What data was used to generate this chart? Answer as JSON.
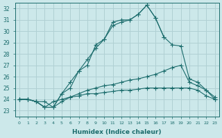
{
  "xlabel": "Humidex (Indice chaleur)",
  "background_color": "#cce8ea",
  "grid_color": "#b0d0d3",
  "line_color": "#1a6b6b",
  "xlim": [
    -0.5,
    23.5
  ],
  "ylim": [
    22.5,
    32.5
  ],
  "yticks": [
    23,
    24,
    25,
    26,
    27,
    28,
    29,
    30,
    31,
    32
  ],
  "xtick_labels": [
    "0",
    "1",
    "2",
    "3",
    "4",
    "5",
    "6",
    "7",
    "8",
    "9",
    "10",
    "11",
    "12",
    "13",
    "14",
    "15",
    "16",
    "17",
    "18",
    "19",
    "20",
    "21",
    "22",
    "23"
  ],
  "line1_x": [
    0,
    1,
    2,
    3,
    4,
    5,
    6,
    7,
    8,
    9,
    10,
    11,
    12,
    13,
    14,
    15,
    16,
    17,
    18,
    19,
    20,
    21,
    22,
    23
  ],
  "line1_y": [
    24.0,
    24.0,
    23.8,
    23.8,
    23.3,
    24.5,
    25.0,
    26.5,
    27.0,
    28.8,
    29.3,
    30.8,
    31.0,
    31.0,
    31.5,
    32.3,
    31.2,
    29.5,
    null,
    null,
    null,
    null,
    null,
    null
  ],
  "line2_x": [
    0,
    1,
    2,
    3,
    4,
    5,
    6,
    7,
    8,
    9,
    10,
    11,
    12,
    13,
    14,
    15,
    16,
    17,
    18,
    19,
    20,
    21,
    22,
    23
  ],
  "line2_y": [
    24.0,
    24.0,
    23.8,
    23.3,
    23.3,
    24.5,
    25.5,
    26.5,
    27.5,
    28.5,
    29.3,
    30.5,
    30.8,
    31.0,
    31.5,
    32.3,
    31.2,
    29.5,
    28.8,
    28.7,
    25.8,
    25.5,
    24.8,
    24.0
  ],
  "line3_x": [
    0,
    1,
    2,
    3,
    4,
    5,
    6,
    7,
    8,
    9,
    10,
    11,
    12,
    13,
    14,
    15,
    16,
    17,
    18,
    19,
    20,
    21,
    22,
    23
  ],
  "line3_y": [
    24.0,
    24.0,
    23.8,
    23.3,
    23.3,
    23.8,
    24.2,
    24.5,
    24.8,
    25.0,
    25.2,
    25.3,
    25.5,
    25.7,
    25.8,
    26.0,
    26.2,
    26.5,
    26.8,
    27.0,
    25.5,
    25.2,
    24.8,
    24.2
  ],
  "line4_x": [
    0,
    1,
    2,
    3,
    4,
    5,
    6,
    7,
    8,
    9,
    10,
    11,
    12,
    13,
    14,
    15,
    16,
    17,
    18,
    19,
    20,
    21,
    22,
    23
  ],
  "line4_y": [
    24.0,
    24.0,
    23.8,
    23.3,
    23.8,
    24.0,
    24.2,
    24.3,
    24.5,
    24.5,
    24.6,
    24.7,
    24.8,
    24.8,
    24.9,
    25.0,
    25.0,
    25.0,
    25.0,
    25.0,
    25.0,
    24.8,
    24.3,
    24.0
  ]
}
